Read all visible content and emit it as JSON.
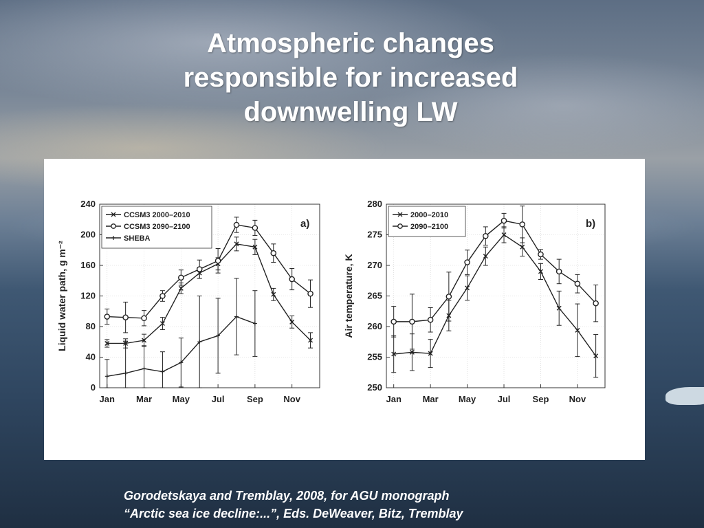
{
  "slide": {
    "title_lines": [
      "Atmospheric changes",
      "responsible for increased",
      "downwelling LW"
    ],
    "caption_lines": [
      "Gorodetskaya and Tremblay, 2008, for  AGU monograph",
      "“Arctic sea ice decline:...”, Eds. DeWeaver, Bitz, Tremblay"
    ]
  },
  "chart_data": [
    {
      "type": "line",
      "panel_label": "a)",
      "ylabel": "Liquid water path, g m⁻²",
      "ylim": [
        0,
        240
      ],
      "yticks": [
        0,
        40,
        80,
        120,
        160,
        200,
        240
      ],
      "x": [
        1,
        2,
        3,
        4,
        5,
        6,
        7,
        8,
        9,
        10,
        11,
        12
      ],
      "xticks": [
        1,
        3,
        5,
        7,
        9,
        11
      ],
      "xtick_labels": [
        "Jan",
        "Mar",
        "May",
        "Jul",
        "Sep",
        "Nov"
      ],
      "grid": true,
      "legend_position": "top-left",
      "series": [
        {
          "name": "CCSM3 2000–2010",
          "marker": "x",
          "values": [
            58,
            58,
            62,
            84,
            130,
            150,
            162,
            188,
            184,
            122,
            86,
            62
          ],
          "err": [
            5,
            6,
            8,
            8,
            7,
            7,
            8,
            9,
            10,
            8,
            8,
            10
          ]
        },
        {
          "name": "CCSM3 2090–2100",
          "marker": "o",
          "values": [
            93,
            92,
            91,
            120,
            144,
            155,
            166,
            213,
            209,
            176,
            142,
            123
          ],
          "err": [
            10,
            20,
            10,
            7,
            10,
            12,
            16,
            10,
            10,
            12,
            14,
            18
          ]
        },
        {
          "name": "SHEBA",
          "marker": "+",
          "values": [
            15,
            19,
            25,
            21,
            33,
            60,
            68,
            93,
            84,
            null,
            null,
            null
          ],
          "err": [
            22,
            42,
            30,
            26,
            32,
            60,
            49,
            50,
            43,
            null,
            null,
            null
          ]
        }
      ]
    },
    {
      "type": "line",
      "panel_label": "b)",
      "ylabel": "Air temperature, K",
      "ylim": [
        250,
        280
      ],
      "yticks": [
        250,
        255,
        260,
        265,
        270,
        275,
        280
      ],
      "x": [
        1,
        2,
        3,
        4,
        5,
        6,
        7,
        8,
        9,
        10,
        11,
        12
      ],
      "xticks": [
        1,
        3,
        5,
        7,
        9,
        11
      ],
      "xtick_labels": [
        "Jan",
        "Mar",
        "May",
        "Jul",
        "Sep",
        "Nov"
      ],
      "grid": true,
      "legend_position": "top-left",
      "series": [
        {
          "name": "2000–2010",
          "marker": "x",
          "values": [
            255.5,
            255.8,
            255.6,
            261.8,
            266.3,
            271.5,
            275.0,
            273.0,
            269.0,
            263.0,
            259.4,
            255.2
          ],
          "err": [
            3.0,
            3.0,
            2.3,
            2.5,
            2.0,
            1.5,
            1.3,
            1.5,
            1.3,
            2.8,
            4.3,
            3.5
          ]
        },
        {
          "name": "2090–2100",
          "marker": "o",
          "values": [
            260.8,
            260.8,
            261.1,
            264.9,
            270.5,
            274.8,
            277.3,
            276.7,
            271.8,
            269.0,
            267.0,
            263.8
          ],
          "err": [
            2.5,
            4.5,
            2.0,
            4.0,
            2.0,
            1.5,
            1.2,
            3.0,
            0.8,
            2.0,
            1.5,
            3.0
          ]
        }
      ]
    }
  ]
}
